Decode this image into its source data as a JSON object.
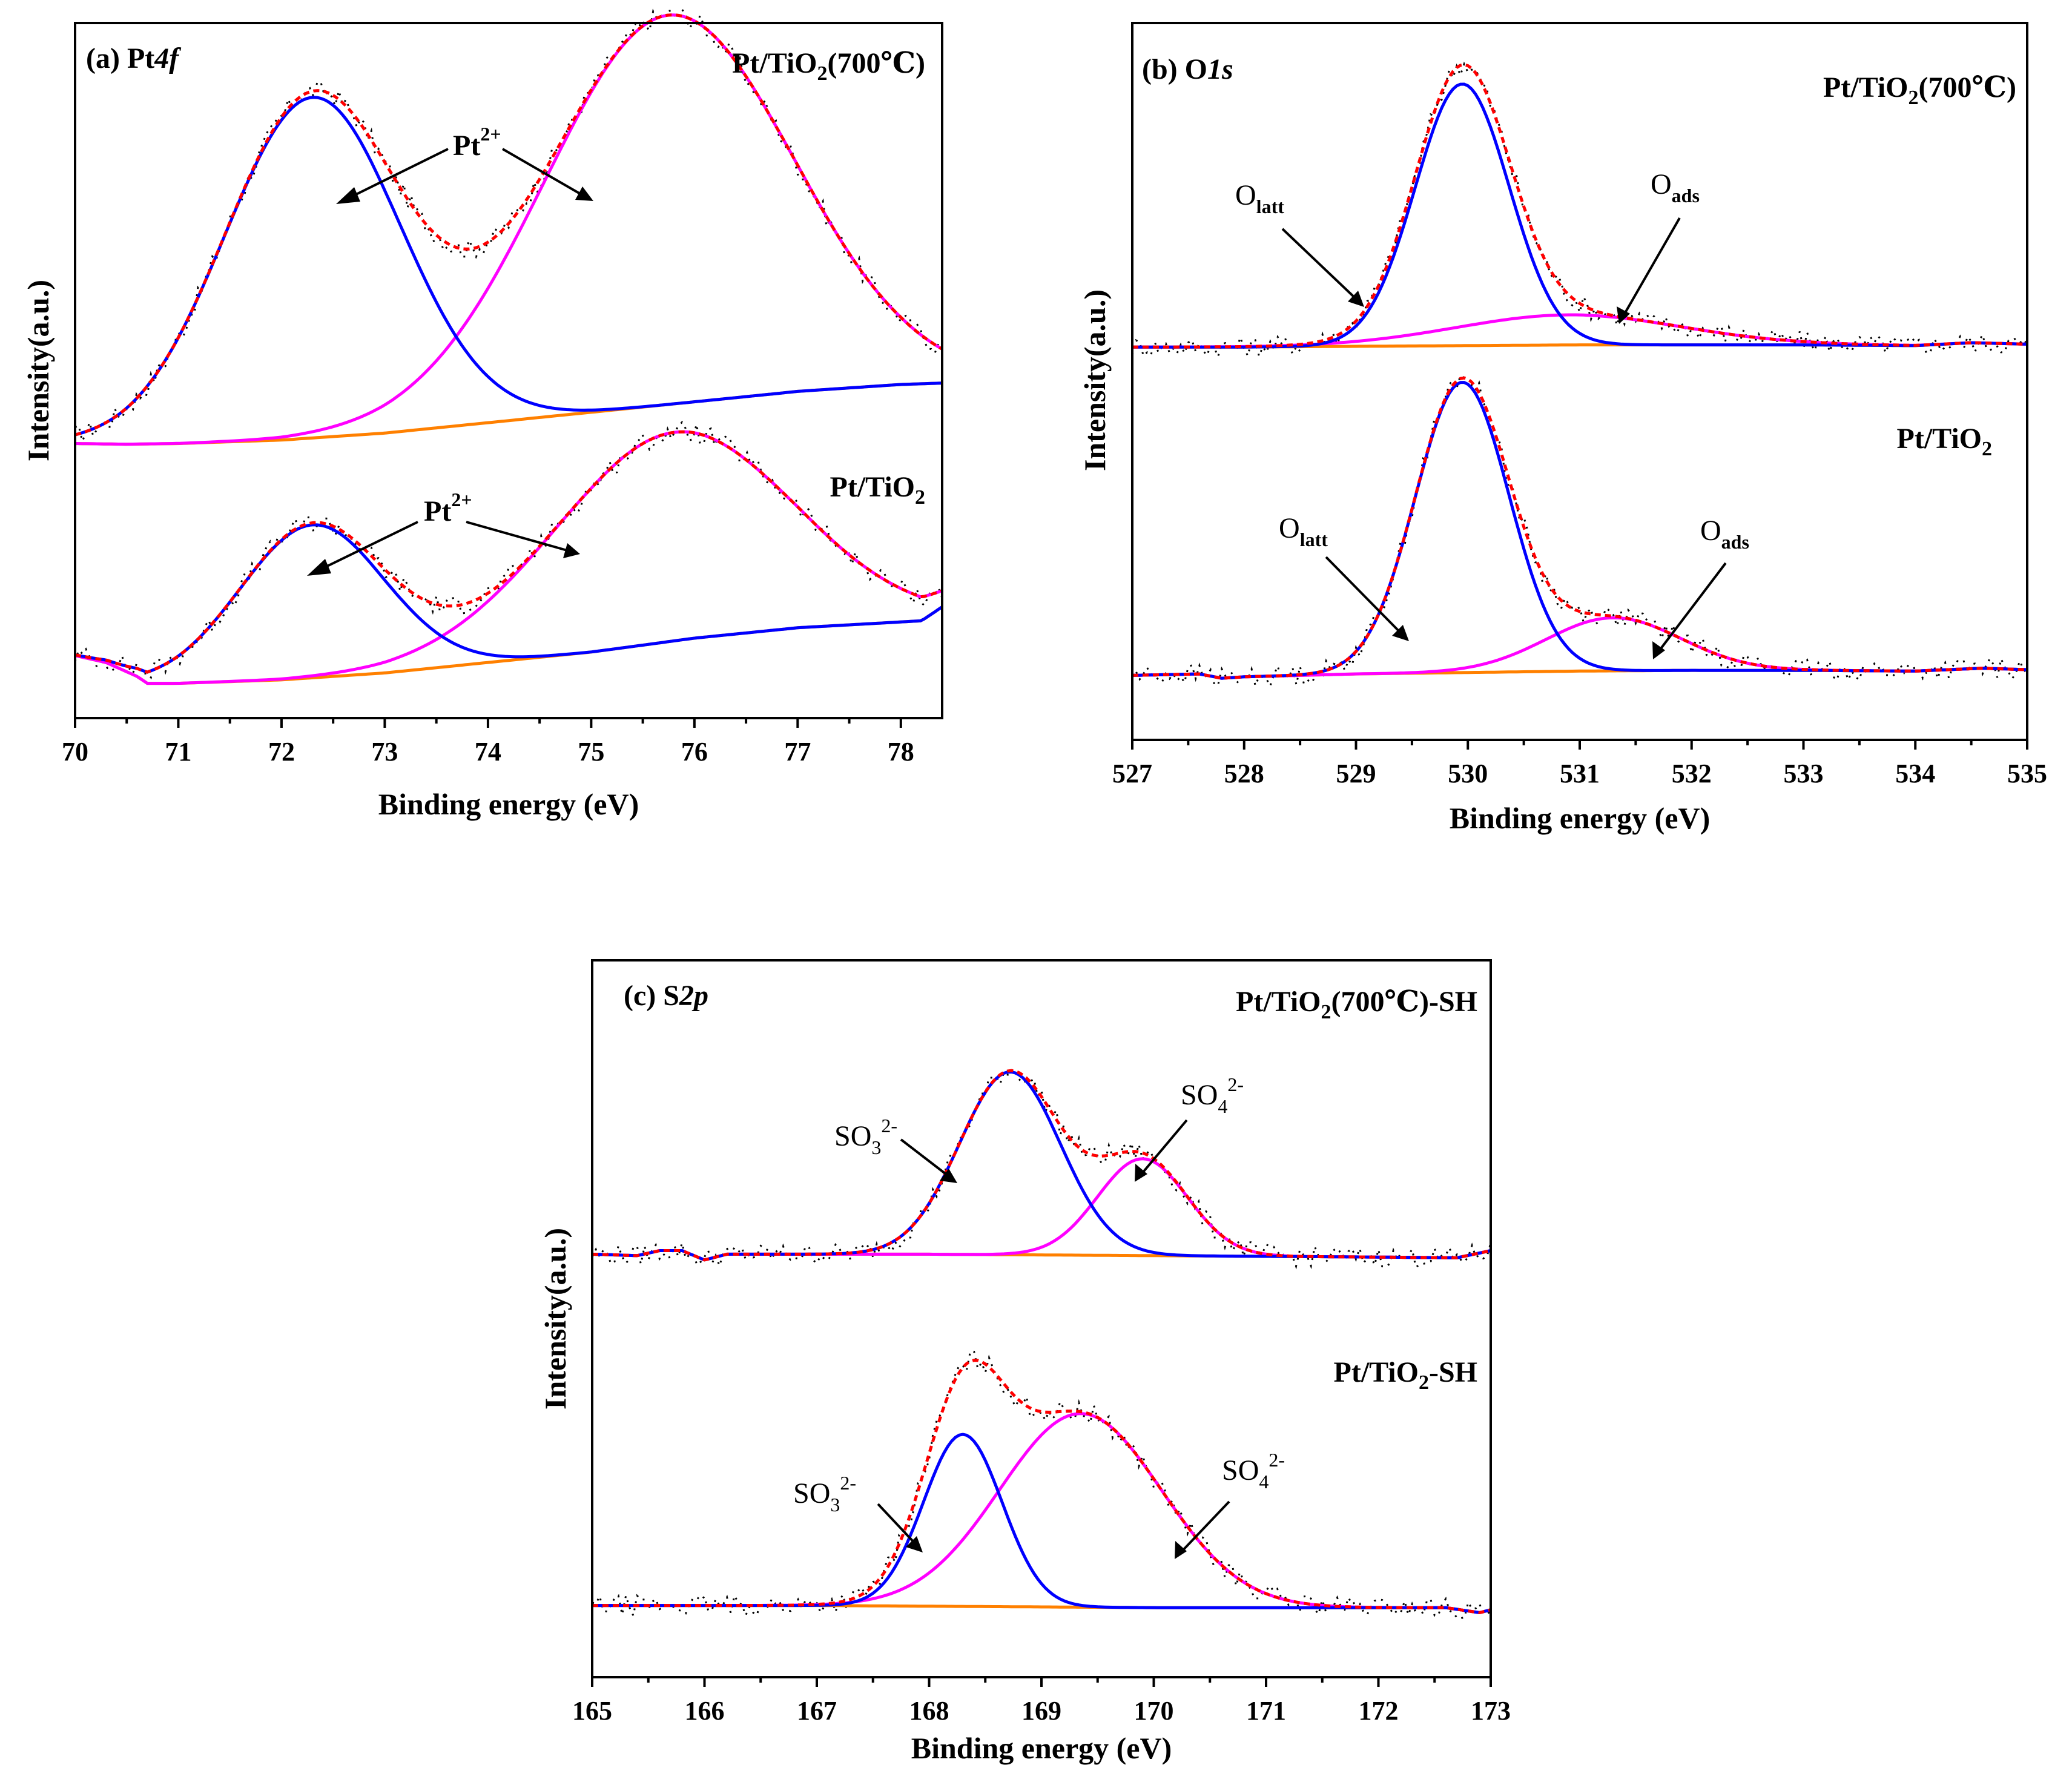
{
  "colors": {
    "raw": "#000000",
    "envelope": "#ff0000",
    "peak1": "#0000ff",
    "peak2": "#ff00ff",
    "baseline": "#ff8000"
  },
  "chart_data": [
    {
      "id": "a",
      "type": "line",
      "panel_label": "(a) Pt",
      "panel_label_italic": "4f",
      "xlabel": "Binding energy (eV)",
      "ylabel": "Intensity(a.u.)",
      "xlim": [
        70,
        78.4
      ],
      "ylim": [
        0,
        1
      ],
      "xticks": [
        70,
        71,
        72,
        73,
        74,
        75,
        76,
        77,
        78
      ],
      "tick_labels": [
        "70",
        "71",
        "72",
        "73",
        "74",
        "75",
        "76",
        "77",
        "78"
      ],
      "traces": [
        {
          "name": "Pt/TiO2(700°C)",
          "label_main": "Pt/TiO",
          "label_sub": "2",
          "label_tail": "(700℃)",
          "baseline": [
            [
              70,
              0.395
            ],
            [
              70.5,
              0.394
            ],
            [
              71,
              0.395
            ],
            [
              72,
              0.4
            ],
            [
              73,
              0.41
            ],
            [
              74,
              0.425
            ],
            [
              75,
              0.44
            ],
            [
              76,
              0.455
            ],
            [
              77,
              0.47
            ],
            [
              78,
              0.48
            ],
            [
              78.4,
              0.482
            ]
          ],
          "peaks": [
            {
              "name": "Pt2+ (1)",
              "center": 72.3,
              "sigma": 0.85,
              "height": 0.49
            },
            {
              "name": "Pt2+ (2)",
              "center": 75.75,
              "sigma": 1.2,
              "height": 0.56
            }
          ],
          "annotations": [
            {
              "text": "Pt",
              "sup": "2+"
            }
          ]
        },
        {
          "name": "Pt/TiO2",
          "label_main": "Pt/TiO",
          "label_sub": "2",
          "label_tail": "",
          "baseline": [
            [
              70,
              0.09
            ],
            [
              70.3,
              0.08
            ],
            [
              70.6,
              0.06
            ],
            [
              70.7,
              0.05
            ],
            [
              71,
              0.05
            ],
            [
              72,
              0.055
            ],
            [
              73,
              0.065
            ],
            [
              74,
              0.08
            ],
            [
              75,
              0.095
            ],
            [
              76,
              0.115
            ],
            [
              77,
              0.13
            ],
            [
              78.2,
              0.14
            ],
            [
              78.4,
              0.16
            ]
          ],
          "peaks": [
            {
              "name": "Pt2+ (1)",
              "center": 72.3,
              "sigma": 0.7,
              "height": 0.22
            },
            {
              "name": "Pt2+ (2)",
              "center": 75.8,
              "sigma": 1.15,
              "height": 0.3
            }
          ],
          "annotations": [
            {
              "text": "Pt",
              "sup": "2+"
            }
          ]
        }
      ]
    },
    {
      "id": "b",
      "type": "line",
      "panel_label": "(b) O",
      "panel_label_italic": "1s",
      "xlabel": "Binding energy (eV)",
      "ylabel": "Intensity(a.u.)",
      "xlim": [
        527,
        535
      ],
      "ylim": [
        0,
        1
      ],
      "xticks": [
        527,
        528,
        529,
        530,
        531,
        532,
        533,
        534,
        535
      ],
      "tick_labels": [
        "527",
        "528",
        "529",
        "530",
        "531",
        "532",
        "533",
        "534",
        "535"
      ],
      "traces": [
        {
          "name": "Pt/TiO2(700°C)",
          "label_main": "Pt/TiO",
          "label_sub": "2",
          "label_tail": "(700℃)",
          "baseline": [
            [
              527,
              0.548
            ],
            [
              528,
              0.548
            ],
            [
              529,
              0.549
            ],
            [
              530,
              0.55
            ],
            [
              531,
              0.551
            ],
            [
              532,
              0.551
            ],
            [
              533,
              0.551
            ],
            [
              534,
              0.55
            ],
            [
              534.5,
              0.554
            ],
            [
              535,
              0.552
            ]
          ],
          "peaks": [
            {
              "name": "O latt",
              "center": 529.95,
              "sigma": 0.42,
              "height": 0.365
            },
            {
              "name": "O ads",
              "center": 530.9,
              "sigma": 1.0,
              "height": 0.042
            }
          ],
          "annotations": [
            {
              "text": "O",
              "sub": "latt"
            },
            {
              "text": "O",
              "sub": "ads"
            }
          ]
        },
        {
          "name": "Pt/TiO2",
          "label_main": "Pt/TiO",
          "label_sub": "2",
          "label_tail": "",
          "baseline": [
            [
              527,
              0.09
            ],
            [
              527.6,
              0.092
            ],
            [
              527.8,
              0.086
            ],
            [
              528,
              0.088
            ],
            [
              529,
              0.092
            ],
            [
              530,
              0.094
            ],
            [
              531,
              0.096
            ],
            [
              532,
              0.097
            ],
            [
              533,
              0.097
            ],
            [
              534,
              0.096
            ],
            [
              534.6,
              0.1
            ],
            [
              535,
              0.098
            ]
          ],
          "peaks": [
            {
              "name": "O latt",
              "center": 529.95,
              "sigma": 0.42,
              "height": 0.405
            },
            {
              "name": "O ads",
              "center": 531.3,
              "sigma": 0.6,
              "height": 0.074
            }
          ],
          "annotations": [
            {
              "text": "O",
              "sub": "latt"
            },
            {
              "text": "O",
              "sub": "ads"
            }
          ]
        }
      ]
    },
    {
      "id": "c",
      "type": "line",
      "panel_label": "(c) S",
      "panel_label_italic": "2p",
      "xlabel": "Binding energy (eV)",
      "ylabel": "Intensity(a.u.)",
      "xlim": [
        165,
        173
      ],
      "ylim": [
        0,
        1
      ],
      "xticks": [
        165,
        166,
        167,
        168,
        169,
        170,
        171,
        172,
        173
      ],
      "tick_labels": [
        "165",
        "166",
        "167",
        "168",
        "169",
        "170",
        "171",
        "172",
        "173"
      ],
      "traces": [
        {
          "name": "Pt/TiO2(700°C)-SH",
          "label_main": "Pt/TiO",
          "label_sub": "2",
          "label_tail": "(700℃)-SH",
          "baseline": [
            [
              165,
              0.59
            ],
            [
              165.4,
              0.588
            ],
            [
              165.6,
              0.595
            ],
            [
              165.8,
              0.595
            ],
            [
              166,
              0.582
            ],
            [
              166.2,
              0.59
            ],
            [
              167,
              0.59
            ],
            [
              168,
              0.59
            ],
            [
              169,
              0.589
            ],
            [
              170,
              0.588
            ],
            [
              171,
              0.587
            ],
            [
              172,
              0.586
            ],
            [
              172.7,
              0.585
            ],
            [
              173,
              0.595
            ]
          ],
          "peaks": [
            {
              "name": "SO3 2-",
              "center": 168.72,
              "sigma": 0.45,
              "height": 0.255
            },
            {
              "name": "SO4 2-",
              "center": 169.9,
              "sigma": 0.4,
              "height": 0.135
            }
          ],
          "annotations": [
            {
              "text": "SO",
              "sub": "3",
              "sup": "2-"
            },
            {
              "text": "SO",
              "sub": "4",
              "sup": "2-"
            }
          ]
        },
        {
          "name": "Pt/TiO2-SH",
          "label_main": "Pt/TiO",
          "label_sub": "2",
          "label_tail": "-SH",
          "baseline": [
            [
              165,
              0.1
            ],
            [
              166,
              0.1
            ],
            [
              167,
              0.1
            ],
            [
              168,
              0.099
            ],
            [
              169,
              0.098
            ],
            [
              170,
              0.097
            ],
            [
              171,
              0.097
            ],
            [
              172,
              0.097
            ],
            [
              172.6,
              0.097
            ],
            [
              172.9,
              0.09
            ],
            [
              173,
              0.094
            ]
          ],
          "peaks": [
            {
              "name": "SO3 2-",
              "center": 168.3,
              "sigma": 0.35,
              "height": 0.24
            },
            {
              "name": "SO4 2-",
              "center": 169.35,
              "sigma": 0.72,
              "height": 0.27
            }
          ],
          "annotations": [
            {
              "text": "SO",
              "sub": "3",
              "sup": "2-"
            },
            {
              "text": "SO",
              "sub": "4",
              "sup": "2-"
            }
          ]
        }
      ]
    }
  ]
}
